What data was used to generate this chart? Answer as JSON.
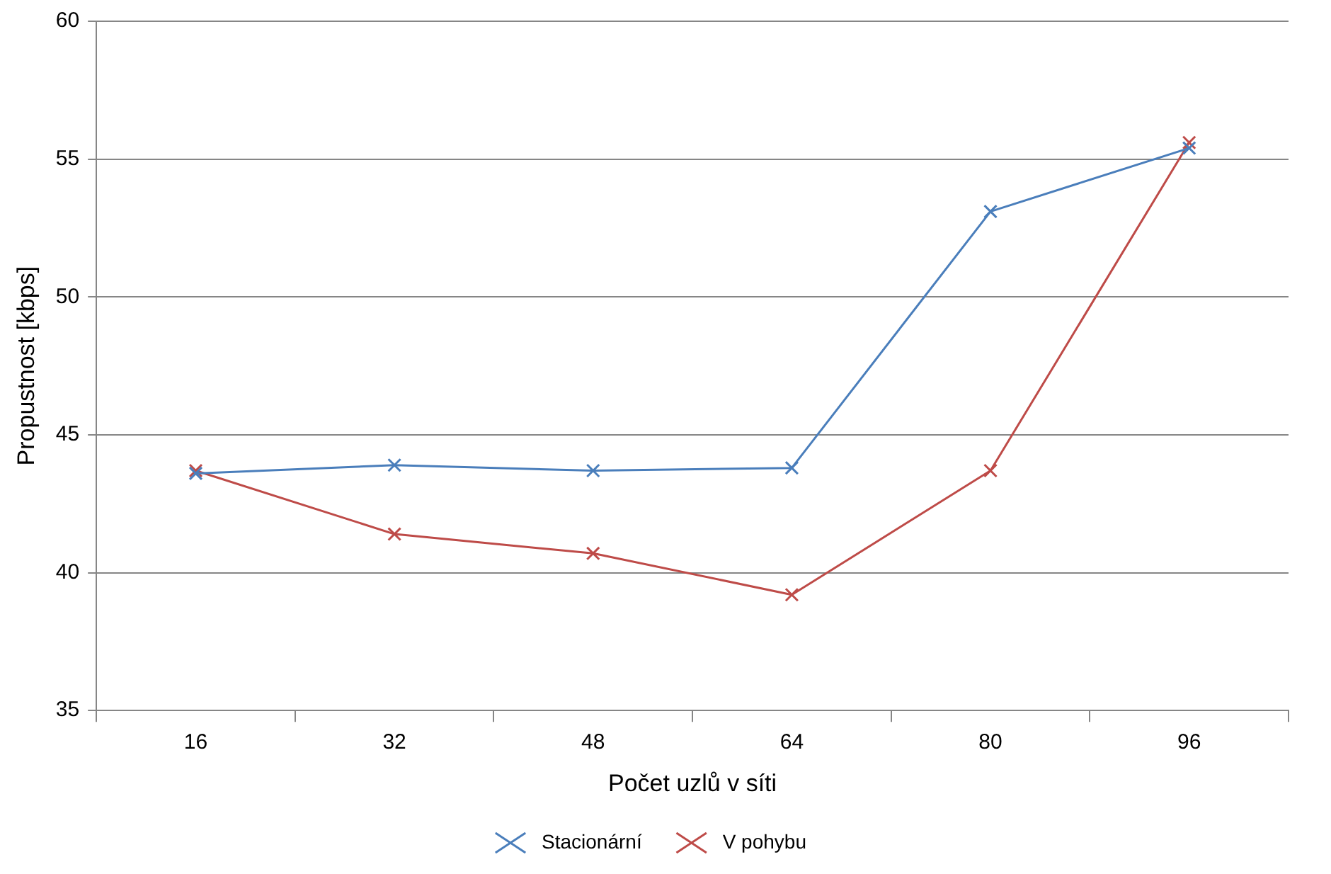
{
  "chart_data": {
    "type": "line",
    "xlabel": "Počet uzlů v síti",
    "ylabel": "Propustnost [kbps]",
    "categories": [
      "16",
      "32",
      "48",
      "64",
      "80",
      "96"
    ],
    "series": [
      {
        "name": "Stacionární",
        "color": "#4a7ebb",
        "values": [
          43.6,
          43.9,
          43.7,
          43.8,
          53.1,
          55.4
        ]
      },
      {
        "name": "V pohybu",
        "color": "#be4b48",
        "values": [
          43.7,
          41.4,
          40.7,
          39.2,
          43.7,
          55.6
        ]
      }
    ],
    "ylim": [
      35,
      60
    ],
    "yticks": [
      35,
      40,
      45,
      50,
      55,
      60
    ],
    "grid": "y",
    "legend": "bottom",
    "marker": "cross",
    "line_style": "solid"
  }
}
